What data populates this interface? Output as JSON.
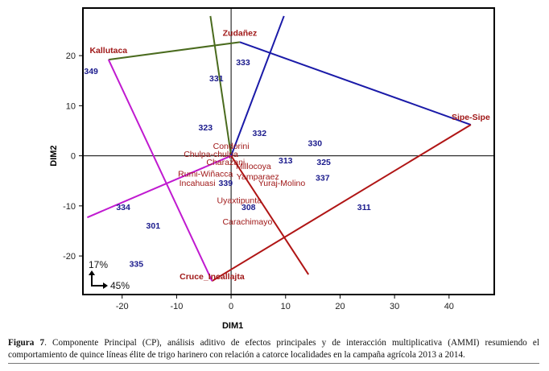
{
  "chart_data": {
    "type": "scatter",
    "subtype": "AMMI biplot (which-won-where polygon)",
    "xlabel": "DIM1",
    "ylabel": "DIM2",
    "xlim": [
      -27.2,
      48.3
    ],
    "ylim": [
      -27.7,
      29.5
    ],
    "xticks": [
      -20,
      -10,
      0,
      10,
      20,
      30,
      40
    ],
    "yticks": [
      -20,
      -10,
      0,
      10,
      20
    ],
    "grid": false,
    "variance_note": {
      "dim2": "17%",
      "dim1": "45%"
    },
    "polygon_vertices": [
      {
        "label": "Kallutaca",
        "x": -22.5,
        "y": 19.2
      },
      {
        "label": "Zudañez",
        "x": 1.6,
        "y": 22.7
      },
      {
        "label": "Sipe-Sipe",
        "x": 44.0,
        "y": 6.2
      },
      {
        "label": "Cruce_Incallajta",
        "x": -3.5,
        "y": -25.0
      }
    ],
    "polygon_edges": [
      {
        "from": 0,
        "to": 1,
        "color": "#4a6b1e"
      },
      {
        "from": 1,
        "to": 2,
        "color": "#1a1aa8"
      },
      {
        "from": 2,
        "to": 3,
        "color": "#b01515"
      },
      {
        "from": 3,
        "to": 0,
        "color": "#c01ad0"
      }
    ],
    "sector_rays": [
      {
        "x": -3.8,
        "y": 27.9,
        "color": "#4a6b1e"
      },
      {
        "x": 9.7,
        "y": 27.9,
        "color": "#1a1aa8"
      },
      {
        "x": 14.2,
        "y": -23.7,
        "color": "#b01515"
      },
      {
        "x": -26.4,
        "y": -12.3,
        "color": "#c01ad0"
      }
    ],
    "genotypes": [
      {
        "label": "349",
        "x": -25.7,
        "y": 17.0
      },
      {
        "label": "331",
        "x": -2.7,
        "y": 15.5
      },
      {
        "label": "333",
        "x": 2.2,
        "y": 18.7
      },
      {
        "label": "323",
        "x": -4.7,
        "y": 5.7
      },
      {
        "label": "332",
        "x": 5.2,
        "y": 4.6
      },
      {
        "label": "330",
        "x": 15.4,
        "y": 2.6
      },
      {
        "label": "313",
        "x": 10.0,
        "y": -0.9
      },
      {
        "label": "325",
        "x": 17.0,
        "y": -1.2
      },
      {
        "label": "337",
        "x": 16.8,
        "y": -4.3
      },
      {
        "label": "339",
        "x": -1.0,
        "y": -5.4
      },
      {
        "label": "334",
        "x": -19.8,
        "y": -10.2
      },
      {
        "label": "308",
        "x": 3.2,
        "y": -10.2
      },
      {
        "label": "311",
        "x": 24.4,
        "y": -10.2
      },
      {
        "label": "301",
        "x": -14.3,
        "y": -13.9
      },
      {
        "label": "335",
        "x": -17.4,
        "y": -21.5
      }
    ],
    "environments": [
      {
        "label": "Condorini",
        "x": 0.0,
        "y": 2.0
      },
      {
        "label": "Chulpa-chulpa",
        "x": -3.7,
        "y": 0.4
      },
      {
        "label": "Charazani",
        "x": -1.0,
        "y": -1.2
      },
      {
        "label": "Millocoya",
        "x": 4.1,
        "y": -2.0
      },
      {
        "label": "Rumi-Wiñacca",
        "x": -4.7,
        "y": -3.5
      },
      {
        "label": "Yamparaez",
        "x": 4.9,
        "y": -4.1
      },
      {
        "label": "Yuraj-Molino",
        "x": 9.3,
        "y": -5.4
      },
      {
        "label": "Incahuasi",
        "x": -6.2,
        "y": -5.4
      },
      {
        "label": "Uyaxtipunta",
        "x": 1.5,
        "y": -8.8
      },
      {
        "label": "Carachimayo",
        "x": 3.0,
        "y": -13.1
      }
    ],
    "colors": {
      "genotype": "#1a1a8c",
      "environment": "#a01818"
    }
  },
  "caption": {
    "label": "Figura 7",
    "text": ". Componente Principal (CP), análisis aditivo de efectos principales y de interacción multiplicativa (AMMI) resumiendo el comportamiento de quince líneas élite de trigo harinero con relación a catorce localidades en la campaña agrícola 2013 a 2014."
  }
}
